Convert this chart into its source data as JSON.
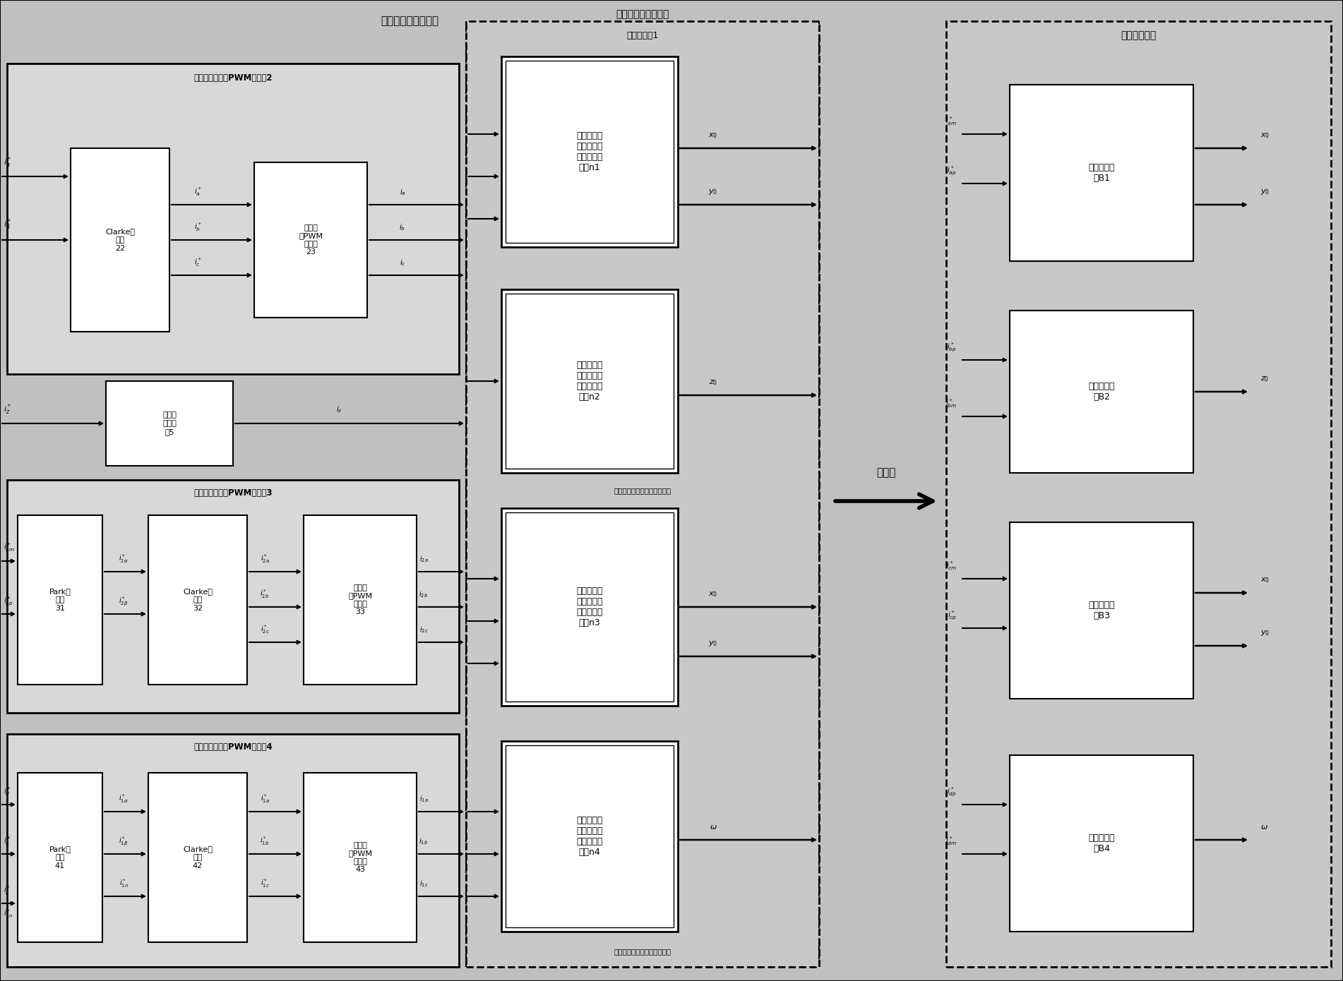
{
  "bg_color": "#d8d8d8",
  "box_bg": "#ffffff",
  "outer_bg": "#e0e0e0",
  "title_top": "五自由度无轴承同步",
  "left_section_title2": "扩展的电流滞环PWM逆变器2",
  "left_section_title3": "扩展的电流滞环PWM逆变器3",
  "left_section_title4": "扩展的电流滞环PWM逆变器4",
  "middle_title": "五自由度无轴承同步",
  "middle_subtitle": "多相整流器1",
  "right_title": "复合逆控制器",
  "subsystem_n1": "三自由度无\n轴承磁阻电\n机磁悬浮力\n系统n1",
  "subsystem_n2": "三自由度无\n轴承磁阻电\n机磁悬浮力\n系统n2",
  "subsystem_n3": "二自由度无\n轴承磁阻电\n机磁悬浮力\n系统n3",
  "subsystem_n4": "二自由度无\n轴承磁阻电\n机磁悬浮力\n系统n4",
  "box_clarke2": "Clarke逆\n变换\n22",
  "box_pwm2": "电流滞\n环PWM\n逆变器\n23",
  "box_amplifier": "斩波功\n率放大\n器5",
  "box_park3": "Park逆\n变换\n31",
  "box_clarke3": "Clarke逆\n变换\n32",
  "box_pwm3": "电流滞\n环PWM\n逆变器\n33",
  "box_park4": "Park逆\n变换\n41",
  "box_clarke4": "Clarke逆\n变换\n42",
  "box_pwm4": "电流滞\n环PWM\n逆变器\n43",
  "right_box1": "复合逆控制\n器B1",
  "right_box2": "复合逆控制\n器B2",
  "right_box3": "复合逆控制\n器B3",
  "right_box4": "复合逆控制\n器B4",
  "equivalent_label": "等效为",
  "three_phase_label": "三自由度无轴承磁阻电机系统",
  "two_phase_label": "二自由度无轴承磁阻电机系统",
  "bottom_label3": "二自由度无轴承\n磁阻电机系统",
  "bottom_label4": "二自由度无轴承\n磁阻电机系统"
}
